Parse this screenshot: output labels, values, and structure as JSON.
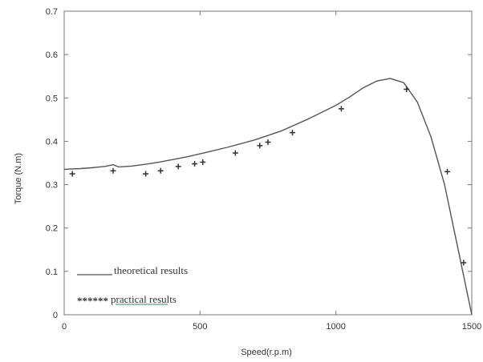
{
  "chart_data": {
    "type": "line",
    "xlabel": "Speed(r.p.m)",
    "ylabel": "Torque (N.m)",
    "xlim": [
      0,
      1500
    ],
    "ylim": [
      0,
      0.7
    ],
    "xticks": [
      "0",
      "500",
      "1000",
      "1500"
    ],
    "yticks": [
      "0",
      "0.1",
      "0.2",
      "0.3",
      "0.4",
      "0.5",
      "0.6",
      "0.7"
    ],
    "grid": false,
    "legend_position": "bottom-left",
    "series": [
      {
        "name": "theoretical results",
        "style": "line",
        "color": "#555555",
        "x": [
          0,
          20,
          60,
          100,
          150,
          180,
          200,
          250,
          300,
          350,
          400,
          450,
          500,
          600,
          700,
          800,
          900,
          1000,
          1050,
          1100,
          1150,
          1200,
          1250,
          1300,
          1350,
          1400,
          1450,
          1500
        ],
        "y": [
          0.335,
          0.336,
          0.337,
          0.339,
          0.342,
          0.346,
          0.341,
          0.343,
          0.347,
          0.352,
          0.358,
          0.364,
          0.371,
          0.386,
          0.403,
          0.424,
          0.452,
          0.483,
          0.502,
          0.523,
          0.539,
          0.545,
          0.535,
          0.49,
          0.41,
          0.3,
          0.15,
          0.0
        ]
      },
      {
        "name": "practical results",
        "style": "marker",
        "marker": "+",
        "color": "#333333",
        "x": [
          30,
          180,
          300,
          355,
          420,
          480,
          510,
          630,
          720,
          750,
          840,
          1020,
          1260,
          1410,
          1470
        ],
        "y": [
          0.325,
          0.332,
          0.325,
          0.332,
          0.342,
          0.348,
          0.352,
          0.373,
          0.39,
          0.398,
          0.42,
          0.475,
          0.52,
          0.33,
          0.12
        ]
      }
    ],
    "legend": [
      {
        "marker_text": "______",
        "label": "theoretical results"
      },
      {
        "marker_text": "******",
        "label": " practical  results"
      }
    ]
  }
}
